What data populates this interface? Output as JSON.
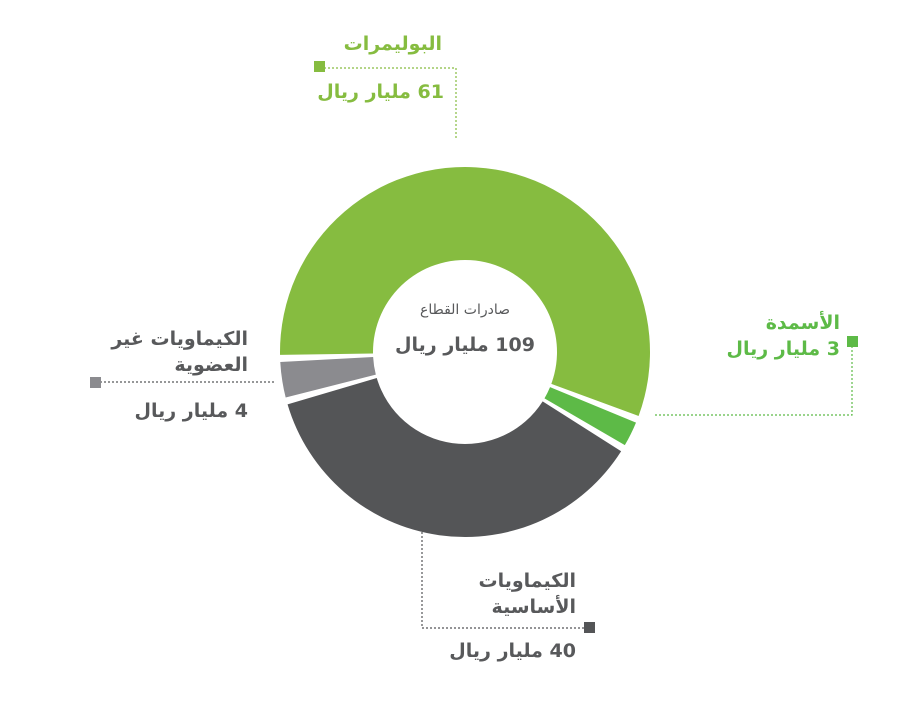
{
  "chart_data": {
    "type": "donut",
    "center": {
      "title": "صادرات القطاع",
      "total_label": "109 مليار ريال"
    },
    "series": [
      {
        "name": "البوليمرات",
        "value": 61,
        "value_label": "61 مليار ريال",
        "color": "#86bc40"
      },
      {
        "name": "الأسمدة",
        "value": 3,
        "value_label": "3 مليار ريال",
        "color": "#5dba47"
      },
      {
        "name": "الكيماويات الأساسية",
        "value": 40,
        "value_label": "40 مليار ريال",
        "color": "#545557"
      },
      {
        "name": "الكيماويات غير العضوية",
        "value": 4,
        "value_label": "4 مليار ريال",
        "color": "#8b8b8f"
      }
    ],
    "unit": "مليار ريال"
  }
}
